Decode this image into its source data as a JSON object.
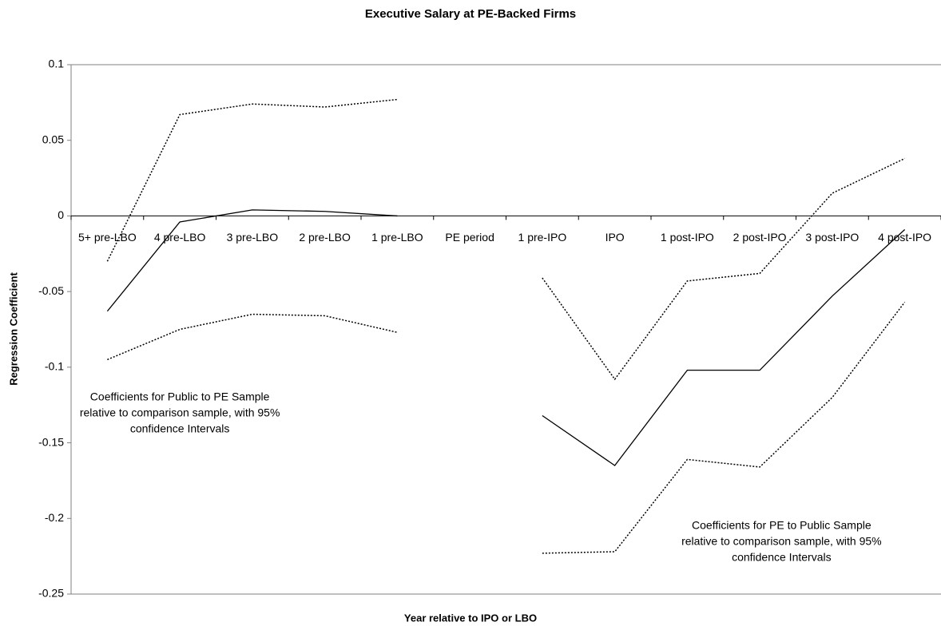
{
  "chart_data": {
    "type": "line",
    "title": "Executive Salary at PE-Backed Firms",
    "x_label": "Year relative to IPO or LBO",
    "y_label": "Regression Coefficient",
    "categories": [
      "5+ pre-LBO",
      "4 pre-LBO",
      "3 pre-LBO",
      "2 pre-LBO",
      "1 pre-LBO",
      "PE period",
      "1 pre-IPO",
      "IPO",
      "1 post-IPO",
      "2 post-IPO",
      "3 post-IPO",
      "4 post-IPO"
    ],
    "series": [
      {
        "color": "#000000",
        "dash": "solid",
        "values": [
          -0.063,
          -0.004,
          0.004,
          0.003,
          0,
          null,
          -0.132,
          -0.165,
          -0.102,
          -0.102,
          -0.053,
          -0.009
        ]
      },
      {
        "color": "#000000",
        "dash": "dotted",
        "values": [
          -0.03,
          0.067,
          0.074,
          0.072,
          0.077,
          null,
          -0.041,
          -0.108,
          -0.043,
          -0.038,
          0.015,
          0.038
        ]
      },
      {
        "color": "#000000",
        "dash": "dotted",
        "values": [
          -0.095,
          -0.075,
          -0.065,
          -0.066,
          -0.077,
          null,
          -0.223,
          -0.222,
          -0.161,
          -0.166,
          -0.12,
          -0.057
        ]
      }
    ],
    "annotations": [
      {
        "lines": [
          "Coefficients for Public to PE Sample",
          "relative to comparison sample, with 95%",
          "confidence Intervals"
        ],
        "x": 1,
        "y": -0.12
      },
      {
        "lines": [
          "Coefficients for PE to Public Sample",
          "relative to comparison sample, with 95%",
          "confidence Intervals"
        ],
        "x": 9.3,
        "y": -0.205
      }
    ],
    "ylim": [
      -0.25,
      0.1
    ],
    "yticks": [
      -0.25,
      -0.2,
      -0.15,
      -0.1,
      -0.05,
      0,
      0.05,
      0.1
    ],
    "grid": false
  }
}
